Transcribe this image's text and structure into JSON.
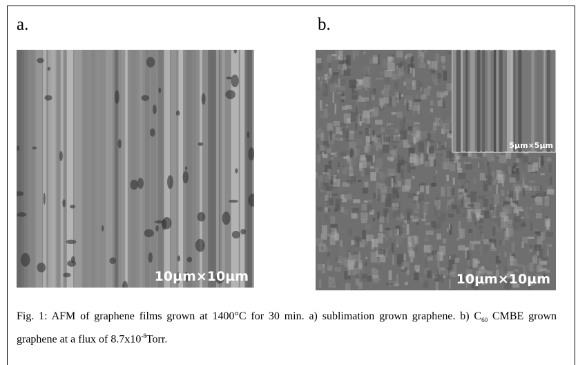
{
  "figure": {
    "panel_a": {
      "label": "a.",
      "scale": "10µm×10µm"
    },
    "panel_b": {
      "label": "b.",
      "scale": "10µm×10µm",
      "inset_scale": "5µm×5µm"
    },
    "caption": [
      "Fig. 1: AFM of graphene films grown at 1400°C for 30 min. a) sublimation grown graphene. b) C",
      "60",
      " CMBE grown graphene at a flux of 8.7x10",
      "-8",
      "Torr."
    ]
  }
}
